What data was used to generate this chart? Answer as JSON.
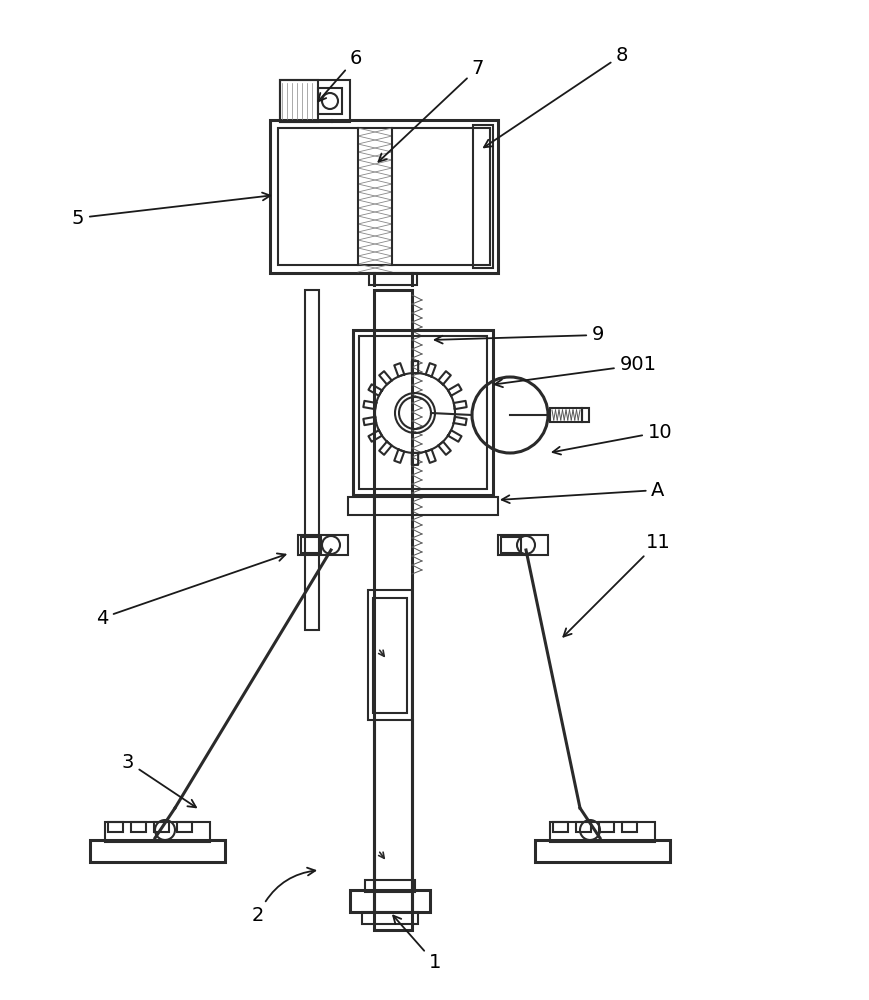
{
  "bg_color": "#ffffff",
  "lc": "#2a2a2a",
  "lw": 1.5,
  "lw2": 2.2,
  "lwd": 0.7,
  "fs": 14,
  "figsize": [
    8.7,
    10.0
  ],
  "dpi": 100
}
